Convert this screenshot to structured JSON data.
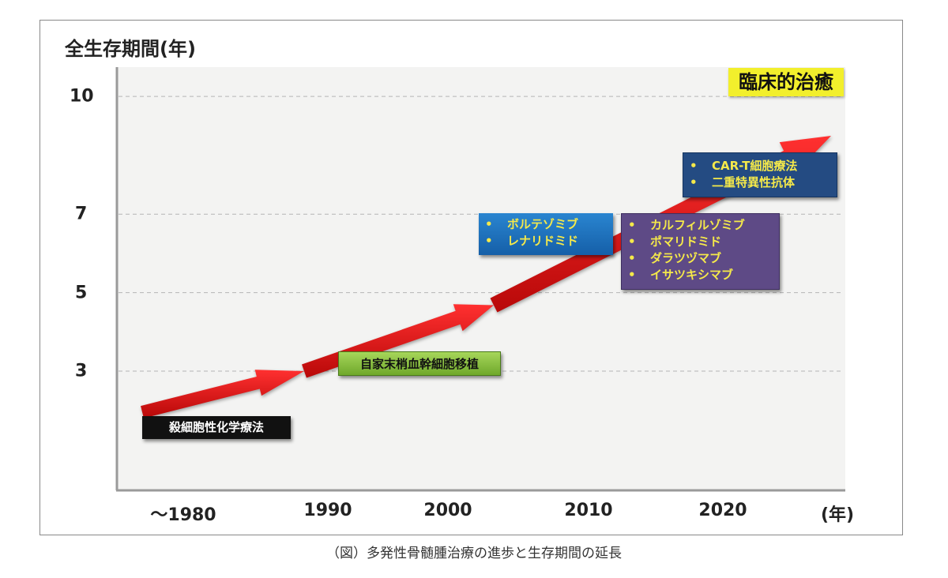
{
  "chart_data": {
    "type": "line",
    "title": "",
    "ylabel": "全生存期間(年)",
    "xlabel": "(年)",
    "y_ticks": [
      3,
      5,
      7,
      10
    ],
    "x_ticks": [
      "〜1980",
      "1990",
      "2000",
      "2010",
      "2020"
    ],
    "ylim": [
      0,
      10.7
    ],
    "grid": "horizontal dashed",
    "series": [
      {
        "name": "overall survival trend",
        "x": [
          "〜1980",
          "1990",
          "2000",
          "2010",
          "2020+"
        ],
        "values": [
          2.4,
          3.0,
          4.8,
          7.5,
          9.6
        ]
      }
    ],
    "annotations": [
      {
        "label": "殺細胞性化学療法",
        "items": []
      },
      {
        "label": "自家末梢血幹細胞移植",
        "items": []
      },
      {
        "label": "",
        "items": [
          "ボルテゾミブ",
          "レナリドミド"
        ]
      },
      {
        "label": "",
        "items": [
          "カルフィルゾミブ",
          "ポマリドミド",
          "ダラツヅマブ",
          "イサツキシマブ"
        ]
      },
      {
        "label": "",
        "items": [
          "CAR-T細胞療法",
          "二重特異性抗体"
        ]
      },
      {
        "label": "臨床的治癒",
        "items": []
      }
    ],
    "caption": "（図）多発性骨髄腫治療の進歩と生存期間の延長"
  },
  "colors": {
    "arrow": "#e01010",
    "chemo": "#111111",
    "transplant": "#8dc63f",
    "blue": "#1a6fbf",
    "purple": "#5e4a86",
    "navy": "#244b82",
    "cure": "#f2ef2c"
  }
}
